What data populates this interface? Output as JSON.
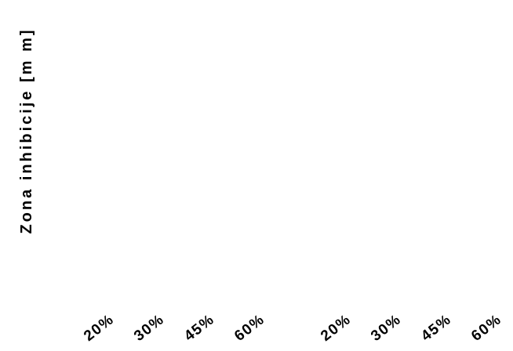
{
  "chart_data": {
    "type": "bar",
    "title": "",
    "xlabel": "",
    "ylabel": "Zona inhibicije [m m]",
    "groups": [
      {
        "categories": [
          "20%",
          "30%",
          "45%",
          "60%"
        ],
        "values": []
      },
      {
        "categories": [
          "20%",
          "30%",
          "45%",
          "60%"
        ],
        "values": []
      }
    ],
    "grid": false,
    "legend": "none",
    "colors": {
      "text": "#000000",
      "background": "#ffffff"
    }
  }
}
